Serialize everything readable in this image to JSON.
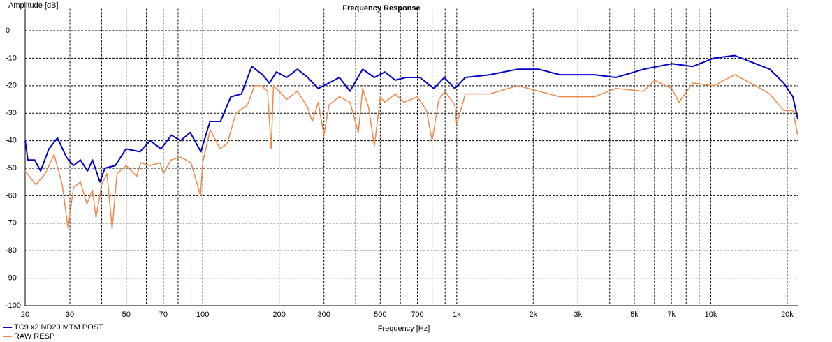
{
  "chart_data": {
    "type": "line",
    "title": "Frequency Response",
    "y_label": "Amplitude [dB]",
    "x_label": "Frequency [Hz]",
    "xscale": "log",
    "xlim": [
      20,
      22000
    ],
    "ylim": [
      -100,
      8
    ],
    "xticks": [
      20,
      30,
      50,
      70,
      100,
      200,
      300,
      500,
      700,
      {
        "value": 1000,
        "label": "1k"
      },
      {
        "value": 2000,
        "label": "2k"
      },
      {
        "value": 3000,
        "label": "3k"
      },
      {
        "value": 5000,
        "label": "5k"
      },
      {
        "value": 7000,
        "label": "7k"
      },
      {
        "value": 10000,
        "label": "10k"
      },
      {
        "value": 20000,
        "label": "20k"
      }
    ],
    "xgrid": [
      40,
      60,
      80,
      90,
      400,
      600,
      800,
      900,
      4000,
      6000,
      8000,
      9000
    ],
    "yticks": [
      0,
      -10,
      -20,
      -30,
      -40,
      -50,
      -60,
      -70,
      -80,
      -90,
      -100
    ],
    "grid": true,
    "legend": "bottom-left",
    "series": [
      {
        "name": "TC9 x2 ND20 MTM POST",
        "color": "#0000cc",
        "x": [
          20,
          20.5,
          21.8,
          23,
          24.8,
          26.8,
          29.1,
          31,
          33,
          35.2,
          36.8,
          39.4,
          41.2,
          45.3,
          49.9,
          56.6,
          62.2,
          68.5,
          75.3,
          81.8,
          89.3,
          98.3,
          106.8,
          117.5,
          129,
          142,
          156,
          172,
          183,
          195,
          214,
          236,
          259,
          285,
          314,
          345,
          380,
          426,
          474,
          521,
          573,
          631,
          716,
          813,
          894,
          982,
          1081,
          1350,
          1738,
          2103,
          2546,
          3493,
          4227,
          5446,
          7018,
          8490,
          10270,
          12420,
          15030,
          17070,
          19370,
          21040,
          21980
        ],
        "values": [
          -40,
          -47,
          -47,
          -51,
          -43,
          -39,
          -46,
          -49,
          -47,
          -51,
          -47,
          -55,
          -50,
          -49,
          -43,
          -44,
          -40,
          -43,
          -38,
          -40,
          -37,
          -44,
          -33,
          -33,
          -24,
          -23,
          -13,
          -16,
          -19,
          -15,
          -17,
          -14,
          -17,
          -21,
          -19,
          -17,
          -22,
          -14,
          -17,
          -15,
          -18,
          -17,
          -17,
          -21,
          -17,
          -21,
          -17,
          -16,
          -14,
          -14,
          -16,
          -16,
          -17,
          -14,
          -12,
          -13,
          -10,
          -9,
          -12,
          -14,
          -19,
          -24,
          -32
        ]
      },
      {
        "name": "RAW RESP",
        "color": "#f08a4b",
        "x": [
          20,
          22,
          24,
          26,
          28,
          29.5,
          31,
          33,
          35,
          36.8,
          38,
          40,
          42,
          44,
          46,
          50,
          55,
          57,
          62,
          68,
          70,
          75,
          82,
          90,
          98,
          100,
          107,
          117,
          125,
          135,
          150,
          160,
          170,
          180,
          186,
          190,
          200,
          214,
          236,
          259,
          270,
          285,
          300,
          314,
          345,
          380,
          410,
          426,
          450,
          474,
          500,
          521,
          573,
          620,
          700,
          760,
          800,
          850,
          900,
          982,
          1000,
          1081,
          1350,
          1738,
          2103,
          2546,
          3493,
          4227,
          5446,
          6000,
          7018,
          7500,
          8490,
          10270,
          12420,
          15030,
          17070,
          19370,
          21040,
          21980
        ],
        "values": [
          -51,
          -56,
          -52,
          -45,
          -56,
          -72,
          -57,
          -55,
          -63,
          -58,
          -68,
          -56,
          -52,
          -72,
          -52,
          -49,
          -53,
          -48,
          -49,
          -48,
          -52,
          -47,
          -46,
          -48,
          -60,
          -48,
          -36,
          -43,
          -41,
          -30,
          -27,
          -20,
          -20,
          -22,
          -43,
          -20,
          -22,
          -25,
          -22,
          -28,
          -33,
          -26,
          -38,
          -27,
          -24,
          -26,
          -37,
          -21,
          -28,
          -42,
          -24,
          -26,
          -23,
          -26,
          -24,
          -29,
          -40,
          -25,
          -22,
          -27,
          -34,
          -23,
          -23,
          -20,
          -22,
          -24,
          -24,
          -21,
          -22,
          -18,
          -21,
          -26,
          -19,
          -20,
          -16,
          -20,
          -23,
          -29,
          -29,
          -38
        ]
      }
    ]
  }
}
